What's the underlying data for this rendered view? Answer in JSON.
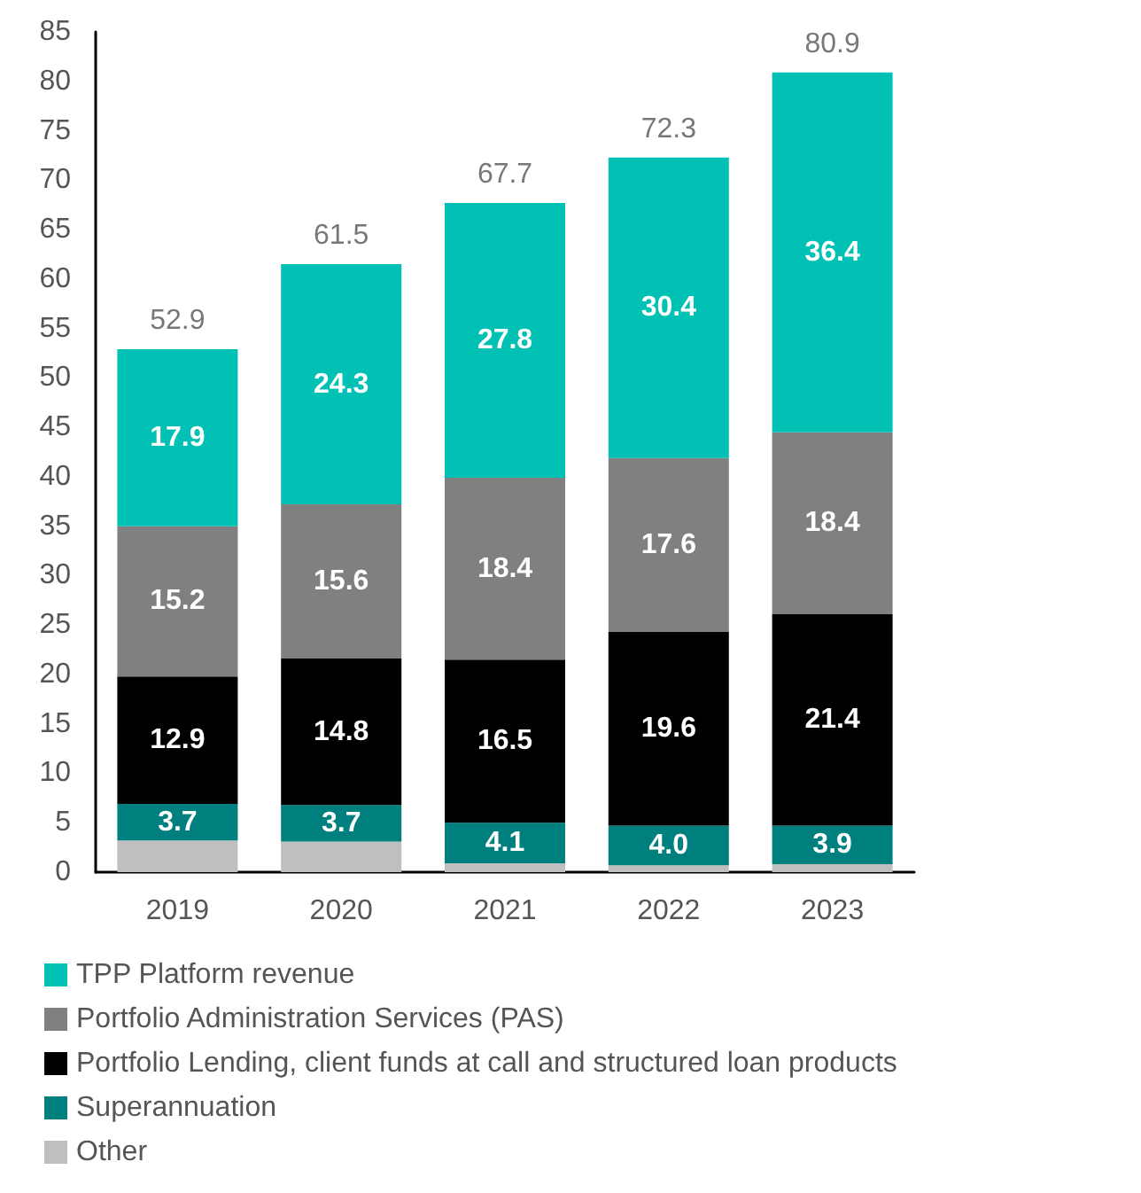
{
  "chart_data": {
    "type": "bar",
    "stacked": true,
    "categories": [
      "2019",
      "2020",
      "2021",
      "2022",
      "2023"
    ],
    "series": [
      {
        "name": "Other",
        "color": "#bfbfbf",
        "values": [
          3.2,
          3.1,
          0.9,
          0.7,
          0.8
        ]
      },
      {
        "name": "Superannuation",
        "color": "#007f7f",
        "values": [
          3.7,
          3.7,
          4.1,
          4.0,
          3.9
        ],
        "value_labels": [
          "3.7",
          "3.7",
          "4.1",
          "4.0",
          "3.9"
        ]
      },
      {
        "name": "Portfolio Lending, client funds at call and structured loan products",
        "color": "#000000",
        "values": [
          12.9,
          14.8,
          16.5,
          19.6,
          21.4
        ],
        "value_labels": [
          "12.9",
          "14.8",
          "16.5",
          "19.6",
          "21.4"
        ]
      },
      {
        "name": "Portfolio Administration Services (PAS)",
        "color": "#808080",
        "values": [
          15.2,
          15.6,
          18.4,
          17.6,
          18.4
        ],
        "value_labels": [
          "15.2",
          "15.6",
          "18.4",
          "17.6",
          "18.4"
        ]
      },
      {
        "name": "TPP Platform revenue",
        "color": "#00c1b4",
        "values": [
          17.9,
          24.3,
          27.8,
          30.4,
          36.4
        ],
        "value_labels": [
          "17.9",
          "24.3",
          "27.8",
          "30.4",
          "36.4"
        ]
      }
    ],
    "totals": [
      "52.9",
      "61.5",
      "67.7",
      "72.3",
      "80.9"
    ],
    "ylim": [
      0,
      85
    ],
    "yticks": [
      0,
      5,
      10,
      15,
      20,
      25,
      30,
      35,
      40,
      45,
      50,
      55,
      60,
      65,
      70,
      75,
      80,
      85
    ],
    "grid": false,
    "legend": "bottom"
  }
}
